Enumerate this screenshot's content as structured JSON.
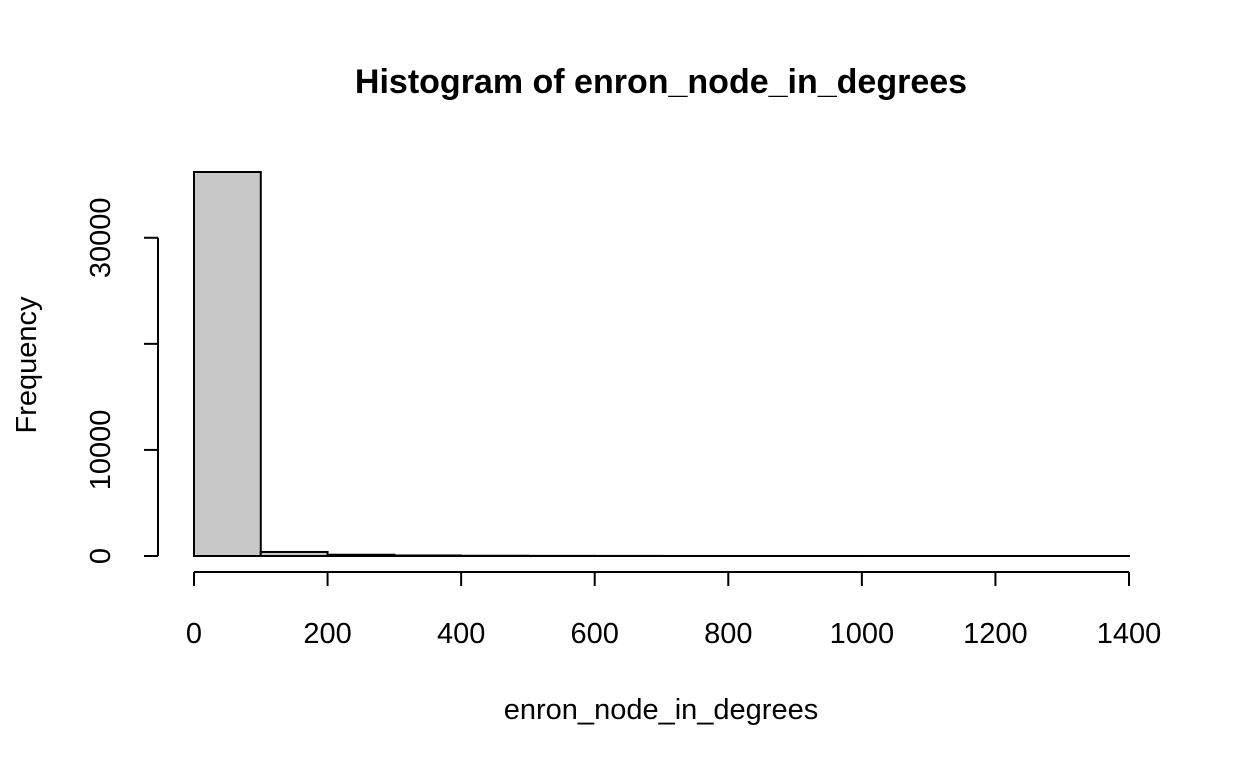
{
  "chart_data": {
    "type": "bar",
    "title": "Histogram of enron_node_in_degrees",
    "xlabel": "enron_node_in_degrees",
    "ylabel": "Frequency",
    "bin_width": 100,
    "bins": [
      {
        "start": 0,
        "end": 100,
        "count": 36200
      },
      {
        "start": 100,
        "end": 200,
        "count": 380
      },
      {
        "start": 200,
        "end": 300,
        "count": 120
      },
      {
        "start": 300,
        "end": 400,
        "count": 50
      },
      {
        "start": 400,
        "end": 500,
        "count": 25
      },
      {
        "start": 500,
        "end": 600,
        "count": 12
      },
      {
        "start": 600,
        "end": 700,
        "count": 7
      },
      {
        "start": 700,
        "end": 800,
        "count": 4
      },
      {
        "start": 800,
        "end": 900,
        "count": 3
      },
      {
        "start": 900,
        "end": 1000,
        "count": 2
      },
      {
        "start": 1000,
        "end": 1100,
        "count": 1
      },
      {
        "start": 1100,
        "end": 1200,
        "count": 1
      },
      {
        "start": 1200,
        "end": 1300,
        "count": 1
      },
      {
        "start": 1300,
        "end": 1400,
        "count": 1
      }
    ],
    "xlim": [
      0,
      1400
    ],
    "ylim": [
      0,
      36200
    ],
    "x_ticks": [
      0,
      200,
      400,
      600,
      800,
      1000,
      1200,
      1400
    ],
    "y_ticks": [
      0,
      10000,
      20000,
      30000
    ],
    "y_tick_labels": [
      "0",
      "10000",
      "",
      "30000"
    ],
    "grid": false,
    "colors": {
      "bar_fill": "#c8c8c8",
      "bar_stroke": "#000000"
    }
  }
}
